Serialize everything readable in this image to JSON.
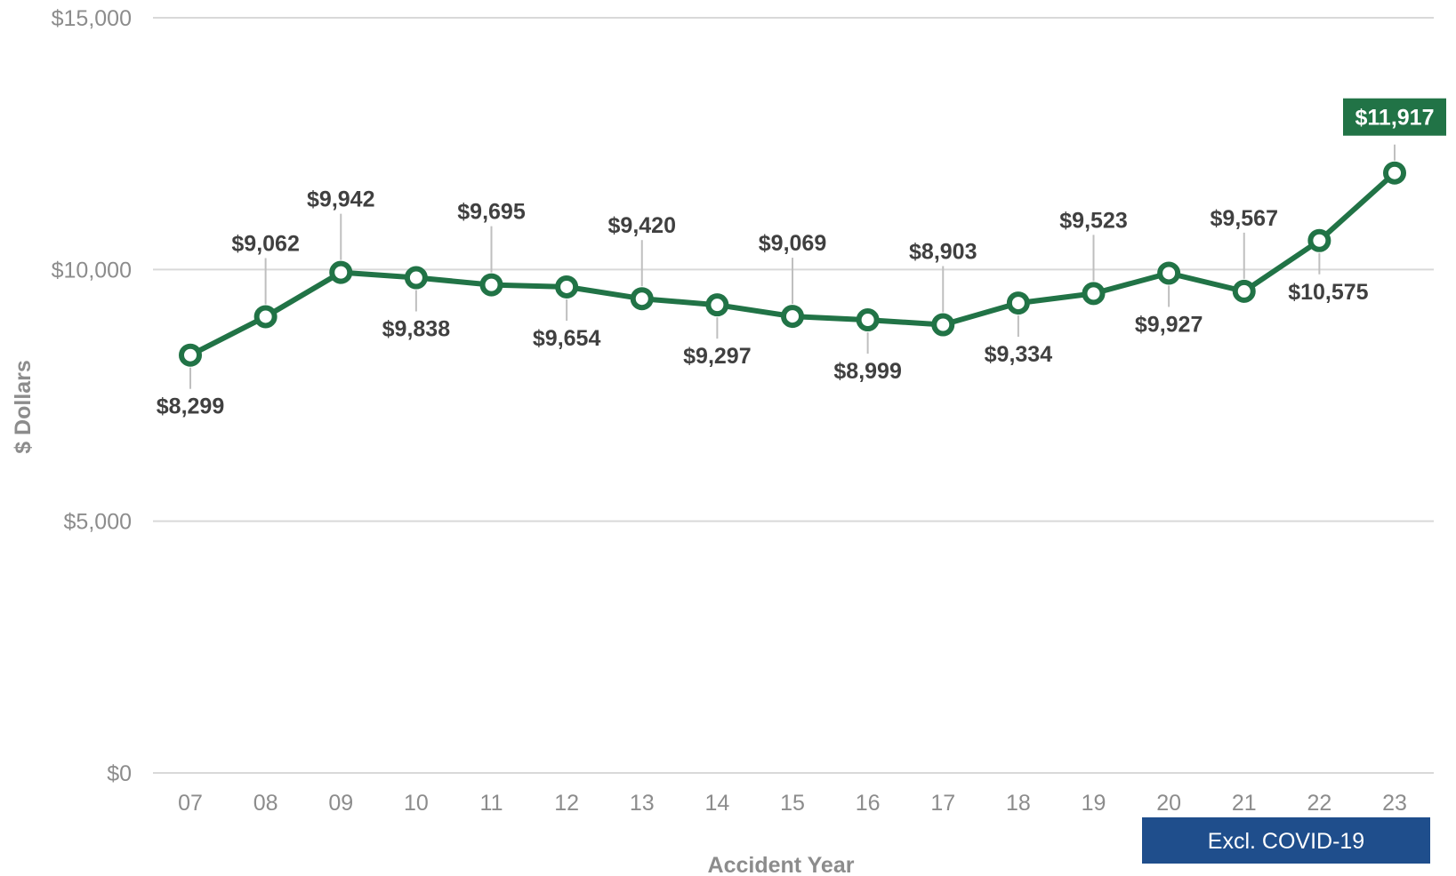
{
  "chart_data": {
    "type": "line",
    "xlabel": "Accident Year",
    "ylabel": "$ Dollars",
    "ylim": [
      0,
      15000
    ],
    "yticks": [
      "$0",
      "$5,000",
      "$10,000",
      "$15,000"
    ],
    "ytick_values": [
      0,
      5000,
      10000,
      15000
    ],
    "categories": [
      "07",
      "08",
      "09",
      "10",
      "11",
      "12",
      "13",
      "14",
      "15",
      "16",
      "17",
      "18",
      "19",
      "20",
      "21",
      "22",
      "23"
    ],
    "values": [
      8299,
      9062,
      9942,
      9838,
      9695,
      9654,
      9420,
      9297,
      9069,
      8999,
      8903,
      9334,
      9523,
      9927,
      9567,
      10575,
      11917
    ],
    "data_labels": [
      "$8,299",
      "$9,062",
      "$9,942",
      "$9,838",
      "$9,695",
      "$9,654",
      "$9,420",
      "$9,297",
      "$9,069",
      "$8,999",
      "$8,903",
      "$9,334",
      "$9,523",
      "$9,927",
      "$9,567",
      "$10,575",
      "$11,917"
    ],
    "label_position": [
      "below",
      "above",
      "above",
      "below",
      "above",
      "below",
      "above",
      "below",
      "above",
      "below",
      "above",
      "below",
      "above",
      "below",
      "above",
      "below",
      "above"
    ],
    "highlight_index": 16,
    "grid": true,
    "annotation": "Excl. COVID-19",
    "colors": {
      "line": "#217346",
      "highlight": "#217346",
      "annotation_bg": "#1f4e8c",
      "grid": "#d9d9d9",
      "tick": "#8c8c8c",
      "label": "#404040"
    }
  }
}
